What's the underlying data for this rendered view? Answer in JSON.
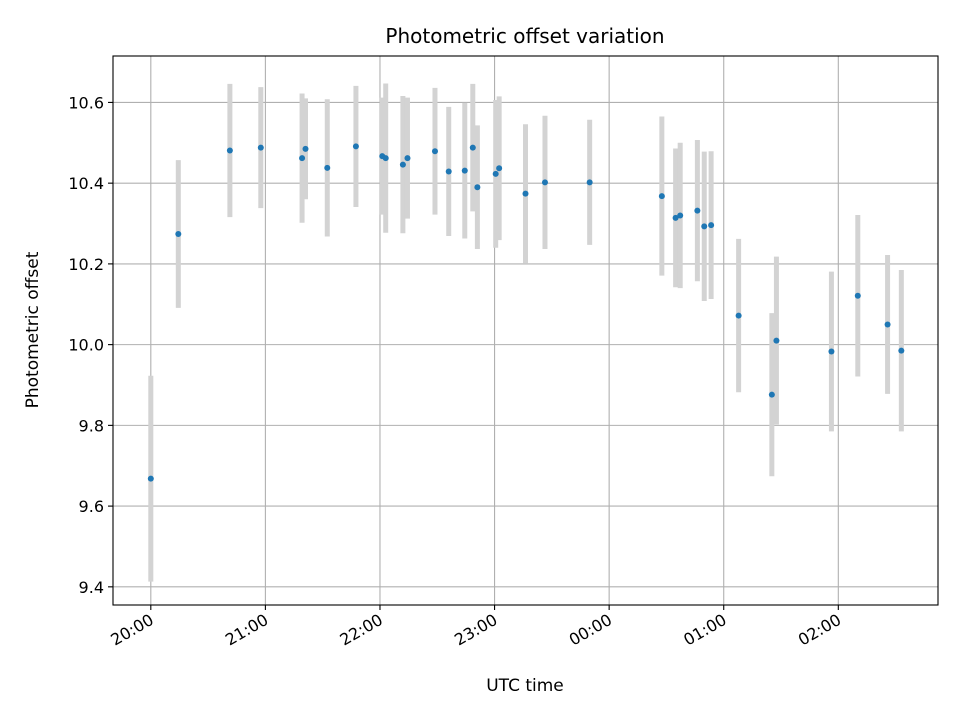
{
  "chart_data": {
    "type": "scatter",
    "title": "Photometric offset variation",
    "xlabel": "UTC time",
    "ylabel": "Photometric offset",
    "x_units": "hours since 20:00 UTC",
    "xlim": [
      -0.33,
      6.87
    ],
    "ylim": [
      9.355,
      10.715
    ],
    "grid": true,
    "xticks": [
      {
        "value": 0,
        "label": "20:00"
      },
      {
        "value": 1,
        "label": "21:00"
      },
      {
        "value": 2,
        "label": "22:00"
      },
      {
        "value": 3,
        "label": "23:00"
      },
      {
        "value": 4,
        "label": "00:00"
      },
      {
        "value": 5,
        "label": "01:00"
      },
      {
        "value": 6,
        "label": "02:00"
      }
    ],
    "yticks": [
      {
        "value": 9.4,
        "label": "9.4"
      },
      {
        "value": 9.6,
        "label": "9.6"
      },
      {
        "value": 9.8,
        "label": "9.8"
      },
      {
        "value": 10.0,
        "label": "10.0"
      },
      {
        "value": 10.2,
        "label": "10.2"
      },
      {
        "value": 10.4,
        "label": "10.4"
      },
      {
        "value": 10.6,
        "label": "10.6"
      }
    ],
    "colors": {
      "point": "#1f77b4",
      "errorbar": "#d3d3d3",
      "grid": "#b0b0b0"
    },
    "points": [
      {
        "x": 0.0,
        "y": 9.668,
        "err": 0.255
      },
      {
        "x": 0.24,
        "y": 10.274,
        "err": 0.183
      },
      {
        "x": 0.69,
        "y": 10.481,
        "err": 0.165
      },
      {
        "x": 0.96,
        "y": 10.488,
        "err": 0.15
      },
      {
        "x": 1.32,
        "y": 10.462,
        "err": 0.16
      },
      {
        "x": 1.35,
        "y": 10.485,
        "err": 0.125
      },
      {
        "x": 1.54,
        "y": 10.438,
        "err": 0.17
      },
      {
        "x": 1.79,
        "y": 10.491,
        "err": 0.15
      },
      {
        "x": 2.02,
        "y": 10.467,
        "err": 0.145
      },
      {
        "x": 2.05,
        "y": 10.462,
        "err": 0.185
      },
      {
        "x": 2.2,
        "y": 10.446,
        "err": 0.17
      },
      {
        "x": 2.24,
        "y": 10.462,
        "err": 0.15
      },
      {
        "x": 2.48,
        "y": 10.479,
        "err": 0.157
      },
      {
        "x": 2.6,
        "y": 10.429,
        "err": 0.16
      },
      {
        "x": 2.74,
        "y": 10.431,
        "err": 0.168
      },
      {
        "x": 2.81,
        "y": 10.488,
        "err": 0.158
      },
      {
        "x": 2.85,
        "y": 10.39,
        "err": 0.153
      },
      {
        "x": 3.01,
        "y": 10.423,
        "err": 0.183
      },
      {
        "x": 3.04,
        "y": 10.437,
        "err": 0.178
      },
      {
        "x": 3.27,
        "y": 10.374,
        "err": 0.172
      },
      {
        "x": 3.44,
        "y": 10.402,
        "err": 0.165
      },
      {
        "x": 3.83,
        "y": 10.402,
        "err": 0.155
      },
      {
        "x": 4.46,
        "y": 10.368,
        "err": 0.197
      },
      {
        "x": 4.58,
        "y": 10.314,
        "err": 0.172
      },
      {
        "x": 4.62,
        "y": 10.32,
        "err": 0.18
      },
      {
        "x": 4.77,
        "y": 10.332,
        "err": 0.175
      },
      {
        "x": 4.83,
        "y": 10.293,
        "err": 0.185
      },
      {
        "x": 4.89,
        "y": 10.296,
        "err": 0.183
      },
      {
        "x": 5.13,
        "y": 10.072,
        "err": 0.19
      },
      {
        "x": 5.42,
        "y": 9.876,
        "err": 0.202
      },
      {
        "x": 5.46,
        "y": 10.01,
        "err": 0.208
      },
      {
        "x": 5.94,
        "y": 9.983,
        "err": 0.198
      },
      {
        "x": 6.17,
        "y": 10.121,
        "err": 0.2
      },
      {
        "x": 6.43,
        "y": 10.05,
        "err": 0.172
      },
      {
        "x": 6.55,
        "y": 9.985,
        "err": 0.2
      }
    ]
  }
}
